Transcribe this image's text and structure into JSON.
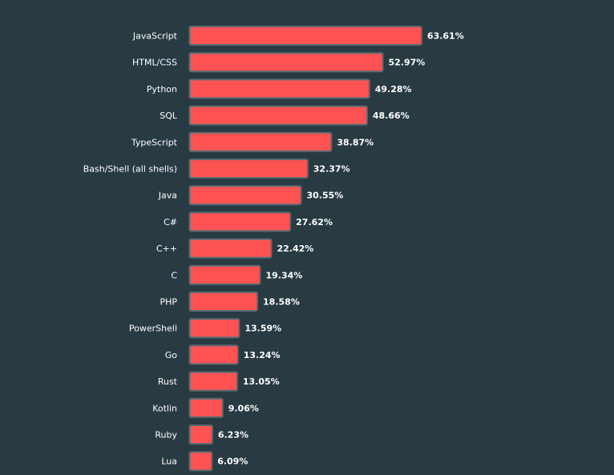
{
  "chart_data": {
    "type": "bar",
    "orientation": "horizontal",
    "categories": [
      "JavaScript",
      "HTML/CSS",
      "Python",
      "SQL",
      "TypeScript",
      "Bash/Shell (all shells)",
      "Java",
      "C#",
      "C++",
      "C",
      "PHP",
      "PowerShell",
      "Go",
      "Rust",
      "Kotlin",
      "Ruby",
      "Lua"
    ],
    "values": [
      63.61,
      52.97,
      49.28,
      48.66,
      38.87,
      32.37,
      30.55,
      27.62,
      22.42,
      19.34,
      18.58,
      13.59,
      13.24,
      13.05,
      9.06,
      6.23,
      6.09
    ],
    "value_labels": [
      "63.61%",
      "52.97%",
      "49.28%",
      "48.66%",
      "38.87%",
      "32.37%",
      "30.55%",
      "27.62%",
      "22.42%",
      "19.34%",
      "18.58%",
      "13.59%",
      "13.24%",
      "13.05%",
      "9.06%",
      "6.23%",
      "6.09%"
    ],
    "title": "",
    "xlabel": "",
    "ylabel": "",
    "grid": false,
    "legend": "none",
    "colors": {
      "background": "#283b42",
      "bar_fill": "#ff5353",
      "bar_stroke": "#5c6b72",
      "text": "#ffffff"
    }
  }
}
